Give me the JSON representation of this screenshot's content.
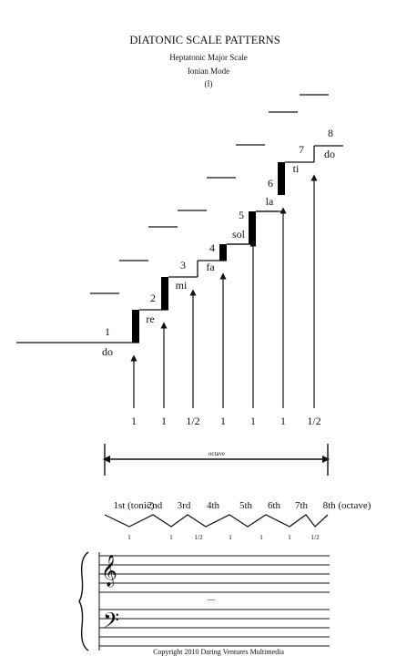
{
  "header": {
    "title": "DIATONIC SCALE PATTERNS",
    "subtitle1": "Heptatonic Major Scale",
    "subtitle2": "Ionian Mode",
    "subtitle3": "(I)"
  },
  "steps": [
    {
      "number": "1",
      "syllable": "do"
    },
    {
      "number": "2",
      "syllable": "re"
    },
    {
      "number": "3",
      "syllable": "mi"
    },
    {
      "number": "4",
      "syllable": "fa"
    },
    {
      "number": "5",
      "syllable": "sol"
    },
    {
      "number": "6",
      "syllable": "la"
    },
    {
      "number": "7",
      "syllable": "ti"
    },
    {
      "number": "8",
      "syllable": "do"
    }
  ],
  "interval_labels": [
    "1",
    "1",
    "1/2",
    "1",
    "1",
    "1",
    "1/2"
  ],
  "octave_label": "octave",
  "degrees": [
    "1st (tonic)",
    "2nd",
    "3rd",
    "4th",
    "5th",
    "6th",
    "7th",
    "8th (octave)"
  ],
  "zigzag_labels": [
    "1",
    "1",
    "1/2",
    "1",
    "1",
    "1",
    "1/2"
  ],
  "staff": {
    "treble_clef_glyph": "𝄞",
    "bass_clef_glyph": "𝄢",
    "ledger_mark": "—"
  },
  "footer": {
    "copyright": "Copyright 2010 Daring Ventures Multimedia"
  },
  "colors": {
    "ink": "#111111",
    "riser": "#000000",
    "background": "#ffffff"
  }
}
